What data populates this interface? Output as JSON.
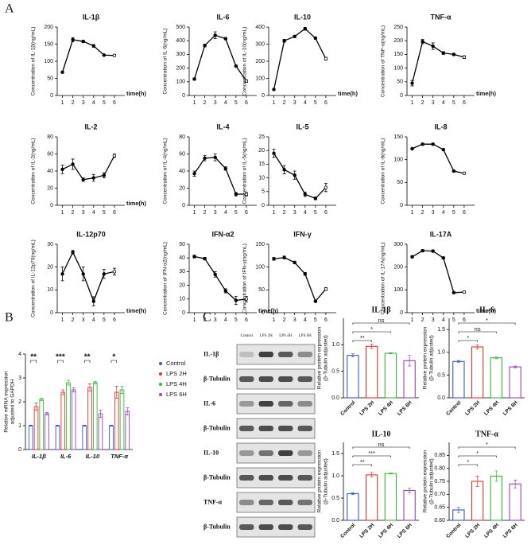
{
  "panels": [
    "A",
    "B",
    "C"
  ],
  "blot": {
    "columns": [
      "Control",
      "LPS 2H",
      "LPS 4H",
      "LPS 6H"
    ],
    "rows": [
      "IL-1β",
      "β-Tubulin",
      "IL-6",
      "β-Tubulin",
      "IL-10",
      "β-Tubulin",
      "TNF-α",
      "β-Tubulin"
    ]
  },
  "chart_data": [
    {
      "type": "line",
      "title": "IL-1β",
      "ylabel": "Concentration of IL-1β(ng/mL)",
      "xlabel": "time(h)",
      "x": [
        1,
        2,
        3,
        4,
        5,
        6
      ],
      "values": [
        68,
        163,
        158,
        145,
        118,
        117
      ],
      "errors": [
        2,
        6,
        3,
        4,
        2,
        3
      ],
      "xlim": [
        0.5,
        7
      ],
      "xticks": [
        1,
        2,
        3,
        4,
        5,
        6
      ],
      "ylim": [
        0,
        200
      ],
      "yticks": [
        0,
        50,
        100,
        150,
        200
      ],
      "color": "#000000"
    },
    {
      "type": "line",
      "title": "IL-6",
      "ylabel": "Concentration of IL-6(ng/mL)",
      "x": [
        1,
        2,
        3,
        4,
        5,
        6
      ],
      "values": [
        120,
        365,
        440,
        415,
        215,
        105
      ],
      "errors": [
        8,
        10,
        25,
        8,
        6,
        10
      ],
      "xlim": [
        0.5,
        7
      ],
      "xticks": [
        1,
        2,
        3,
        4,
        5,
        6
      ],
      "ylim": [
        0,
        500
      ],
      "yticks": [
        0,
        100,
        200,
        300,
        400,
        500
      ],
      "color": "#000000"
    },
    {
      "type": "line",
      "title": "IL-10",
      "ylabel": "Concentration of IL-10(ng/mL)",
      "xlabel": "time(h)",
      "x": [
        1,
        2,
        3,
        4,
        5,
        6
      ],
      "values": [
        35,
        320,
        345,
        390,
        335,
        215
      ],
      "errors": [
        3,
        8,
        6,
        8,
        6,
        8
      ],
      "xlim": [
        0.5,
        7
      ],
      "xticks": [
        1,
        2,
        3,
        4,
        5,
        6
      ],
      "ylim": [
        0,
        400
      ],
      "yticks": [
        0,
        100,
        200,
        300,
        400
      ],
      "color": "#000000"
    },
    {
      "type": "line",
      "title": "TNF-α",
      "ylabel": "Concentration of TNF-α(ng/mL)",
      "xlabel": "time(h)",
      "x": [
        1,
        2,
        3,
        4,
        5,
        6
      ],
      "values": [
        45,
        197,
        180,
        155,
        150,
        140
      ],
      "errors": [
        10,
        8,
        12,
        5,
        4,
        5
      ],
      "xlim": [
        0.5,
        7
      ],
      "xticks": [
        1,
        2,
        3,
        4,
        5,
        6
      ],
      "ylim": [
        0,
        250
      ],
      "yticks": [
        0,
        50,
        100,
        150,
        200,
        250
      ],
      "color": "#000000"
    },
    {
      "type": "line",
      "title": "IL-2",
      "ylabel": "Concentration of IL-2(ng/mL)",
      "xlabel": "time(h)",
      "x": [
        1,
        2,
        3,
        4,
        5,
        6
      ],
      "values": [
        42,
        48,
        30,
        32,
        35,
        58
      ],
      "errors": [
        5,
        6,
        2,
        4,
        3,
        2
      ],
      "xlim": [
        0.5,
        7
      ],
      "xticks": [
        1,
        2,
        3,
        4,
        5,
        6
      ],
      "ylim": [
        0,
        80
      ],
      "yticks": [
        0,
        20,
        40,
        60,
        80
      ],
      "color": "#000000"
    },
    {
      "type": "line",
      "title": "IL-4",
      "ylabel": "Concentration of IL-4(ng/mL)",
      "x": [
        1,
        2,
        3,
        4,
        5,
        6
      ],
      "values": [
        37,
        55,
        56,
        43,
        13,
        13
      ],
      "errors": [
        3,
        3,
        4,
        2,
        2,
        2
      ],
      "xlim": [
        0.5,
        7
      ],
      "xticks": [
        1,
        2,
        3,
        4,
        5,
        6
      ],
      "ylim": [
        0,
        80
      ],
      "yticks": [
        0,
        20,
        40,
        60,
        80
      ],
      "color": "#000000"
    },
    {
      "type": "line",
      "title": "IL-5",
      "ylabel": "Concentration of IL-5(ng/mL)",
      "x": [
        1,
        2,
        3,
        4,
        5,
        6
      ],
      "values": [
        19,
        13,
        11,
        4,
        2.5,
        6.5
      ],
      "errors": [
        1.5,
        1.5,
        1.5,
        0.8,
        0.5,
        1.5
      ],
      "xlim": [
        0.5,
        7
      ],
      "xticks": [
        1,
        2,
        3,
        4,
        5,
        6
      ],
      "ylim": [
        0,
        25
      ],
      "yticks": [
        0,
        5,
        10,
        15,
        20,
        25
      ],
      "color": "#000000"
    },
    {
      "type": "line",
      "title": "IL-8",
      "ylabel": "Concentration of IL-8(ng/mL)",
      "x": [
        1,
        2,
        3,
        4,
        5,
        6
      ],
      "values": [
        124,
        134,
        134,
        122,
        75,
        70
      ],
      "errors": [
        2,
        2,
        2,
        2,
        2,
        2
      ],
      "xlim": [
        0.5,
        7
      ],
      "xticks": [
        1,
        2,
        3,
        4,
        5,
        6
      ],
      "ylim": [
        0,
        150
      ],
      "yticks": [
        0,
        50,
        100,
        150
      ],
      "color": "#000000"
    },
    {
      "type": "line",
      "title": "IL-12p70",
      "ylabel": "Concentration of IL-12p70(ng/mL)",
      "xlabel": "time(h)",
      "x": [
        1,
        2,
        3,
        4,
        5,
        6
      ],
      "values": [
        17,
        26.5,
        17,
        5,
        17,
        18
      ],
      "errors": [
        3,
        0.8,
        3,
        2,
        2,
        1.5
      ],
      "xlim": [
        0.5,
        7
      ],
      "xticks": [
        1,
        2,
        3,
        4,
        5,
        6
      ],
      "ylim": [
        0,
        30
      ],
      "yticks": [
        0,
        10,
        20,
        30
      ],
      "color": "#000000"
    },
    {
      "type": "line",
      "title": "IFN-α2",
      "ylabel": "Concentration of IFN-α2(ng/mL)",
      "xlabel": "time(h)",
      "x": [
        1,
        2,
        3,
        4,
        5,
        6
      ],
      "values": [
        41,
        39.5,
        28,
        16,
        9,
        10
      ],
      "errors": [
        1,
        1,
        2,
        1.5,
        3,
        2
      ],
      "xlim": [
        0.5,
        7
      ],
      "xticks": [
        1,
        2,
        3,
        4,
        5,
        6
      ],
      "ylim": [
        0,
        50
      ],
      "yticks": [
        0,
        10,
        20,
        30,
        40,
        50
      ],
      "color": "#000000"
    },
    {
      "type": "line",
      "title": "IFN-γ",
      "ylabel": "Concentration of IFN-γ(ng/mL)",
      "x": [
        1,
        2,
        3,
        4,
        5,
        6
      ],
      "values": [
        118,
        121,
        110,
        85,
        25,
        52
      ],
      "errors": [
        3,
        3,
        3,
        3,
        2,
        3
      ],
      "xlim": [
        0.5,
        7
      ],
      "xticks": [
        1,
        2,
        3,
        4,
        5,
        6
      ],
      "ylim": [
        0,
        150
      ],
      "yticks": [
        0,
        50,
        100,
        150
      ],
      "color": "#000000"
    },
    {
      "type": "line",
      "title": "IL-17A",
      "ylabel": "Concentration of IL-17A(ng/mL)",
      "xlabel": "time(h)",
      "x": [
        1,
        2,
        3,
        4,
        5,
        6
      ],
      "values": [
        245,
        272,
        270,
        240,
        88,
        90
      ],
      "errors": [
        5,
        5,
        5,
        4,
        4,
        5
      ],
      "xlim": [
        0.5,
        7
      ],
      "xticks": [
        1,
        2,
        3,
        4,
        5,
        6
      ],
      "ylim": [
        0,
        300
      ],
      "yticks": [
        0,
        100,
        200,
        300
      ],
      "color": "#000000"
    },
    {
      "type": "bar",
      "ylabel": [
        "Relative mRNA expression",
        "adjusted to GAPDH"
      ],
      "categories": [
        "IL-1β",
        "IL-6",
        "IL-10",
        "TNF-α"
      ],
      "series": [
        {
          "name": "Control",
          "color": "#3355dd",
          "values": [
            1,
            1,
            1,
            1
          ],
          "errors": [
            0.02,
            0.02,
            0.02,
            0.02
          ]
        },
        {
          "name": "LPS 2H",
          "color": "#e8322e",
          "values": [
            1.8,
            2.4,
            2.6,
            2.4
          ],
          "errors": [
            0.15,
            0.1,
            0.15,
            0.25
          ]
        },
        {
          "name": "LPS 4H",
          "color": "#33bb33",
          "values": [
            2.1,
            2.8,
            2.8,
            2.5
          ],
          "errors": [
            0.05,
            0.1,
            0.05,
            0.15
          ]
        },
        {
          "name": "LPS 6H",
          "color": "#9944bb",
          "values": [
            1.5,
            2.5,
            1.5,
            1.6
          ],
          "errors": [
            0.05,
            0.08,
            0.15,
            0.15
          ]
        }
      ],
      "significance": [
        "**",
        "***",
        "**",
        "*"
      ],
      "ylim": [
        0,
        4
      ],
      "yticks": [
        0,
        1,
        2,
        3,
        4
      ],
      "legend": "right"
    },
    {
      "type": "bar",
      "title": "IL-1β",
      "ylabel": [
        "Relative protein expression",
        "(β-Tubulin adjusted)"
      ],
      "categories": [
        "Control",
        "LPS 2H",
        "LPS 4H",
        "LPS 6H"
      ],
      "values": [
        0.8,
        0.97,
        0.84,
        0.7
      ],
      "errors": [
        0.03,
        0.04,
        0.01,
        0.1
      ],
      "colors": [
        "#3355dd",
        "#e8322e",
        "#33bb33",
        "#9944bb"
      ],
      "significance": [
        "**",
        "*",
        "ns"
      ],
      "ylim": [
        0,
        1.5
      ],
      "yticks": [
        {
          "value": 0,
          "label": "0.0"
        },
        {
          "value": 0.5,
          "label": "0.5"
        },
        {
          "value": 1,
          "label": "1.0"
        }
      ]
    },
    {
      "type": "bar",
      "title": "IL-6",
      "ylabel": [
        "Relative protein expression",
        "(β-Tubulin adjusted)"
      ],
      "categories": [
        "Control",
        "LPS 2H",
        "LPS 4H",
        "LPS 6H"
      ],
      "values": [
        0.8,
        1.12,
        0.88,
        0.68
      ],
      "errors": [
        0.02,
        0.04,
        0.02,
        0.02
      ],
      "colors": [
        "#3355dd",
        "#e8322e",
        "#33bb33",
        "#9944bb"
      ],
      "significance": [
        "*",
        "ns",
        "*"
      ],
      "ylim": [
        0,
        1.75
      ],
      "yticks": [
        {
          "value": 0,
          "label": "0.0"
        },
        {
          "value": 0.5,
          "label": "0.5"
        },
        {
          "value": 1,
          "label": "1.0"
        },
        {
          "value": 1.5,
          "label": "1.5"
        }
      ]
    },
    {
      "type": "bar",
      "title": "IL-10",
      "ylabel": [
        "Relative protein expression",
        "(β-Tubulin adjusted)"
      ],
      "categories": [
        "Control",
        "LPS 2H",
        "LPS 4H",
        "LPS 6H"
      ],
      "values": [
        0.6,
        1.02,
        1.05,
        0.67
      ],
      "errors": [
        0.02,
        0.05,
        0.01,
        0.05
      ],
      "colors": [
        "#3355dd",
        "#e8322e",
        "#33bb33",
        "#9944bb"
      ],
      "significance": [
        "**",
        "***",
        "ns"
      ],
      "ylim": [
        0,
        1.75
      ],
      "yticks": [
        {
          "value": 0,
          "label": "0.0"
        },
        {
          "value": 0.5,
          "label": "0.5"
        },
        {
          "value": 1,
          "label": "1.0"
        },
        {
          "value": 1.5,
          "label": "1.5"
        }
      ]
    },
    {
      "type": "bar",
      "title": "TNF-α",
      "ylabel": [
        "Relative protein expression",
        "(β-Tubulin adjusted)"
      ],
      "categories": [
        "Control",
        "LPS 2H",
        "LPS 4H",
        "LPS 6H"
      ],
      "values": [
        0.64,
        0.75,
        0.77,
        0.74
      ],
      "errors": [
        0.01,
        0.02,
        0.02,
        0.015
      ],
      "colors": [
        "#3355dd",
        "#e8322e",
        "#33bb33",
        "#9944bb"
      ],
      "significance": [
        "*",
        "*",
        "*"
      ],
      "ylim": [
        0.6,
        0.9
      ],
      "yticks": [
        {
          "value": 0.6,
          "label": "0.60"
        },
        {
          "value": 0.65,
          "label": "0.65"
        },
        {
          "value": 0.7,
          "label": "0.70"
        },
        {
          "value": 0.75,
          "label": "0.75"
        },
        {
          "value": 0.8,
          "label": "0.80"
        },
        {
          "value": 0.85,
          "label": "0.85"
        }
      ]
    }
  ]
}
